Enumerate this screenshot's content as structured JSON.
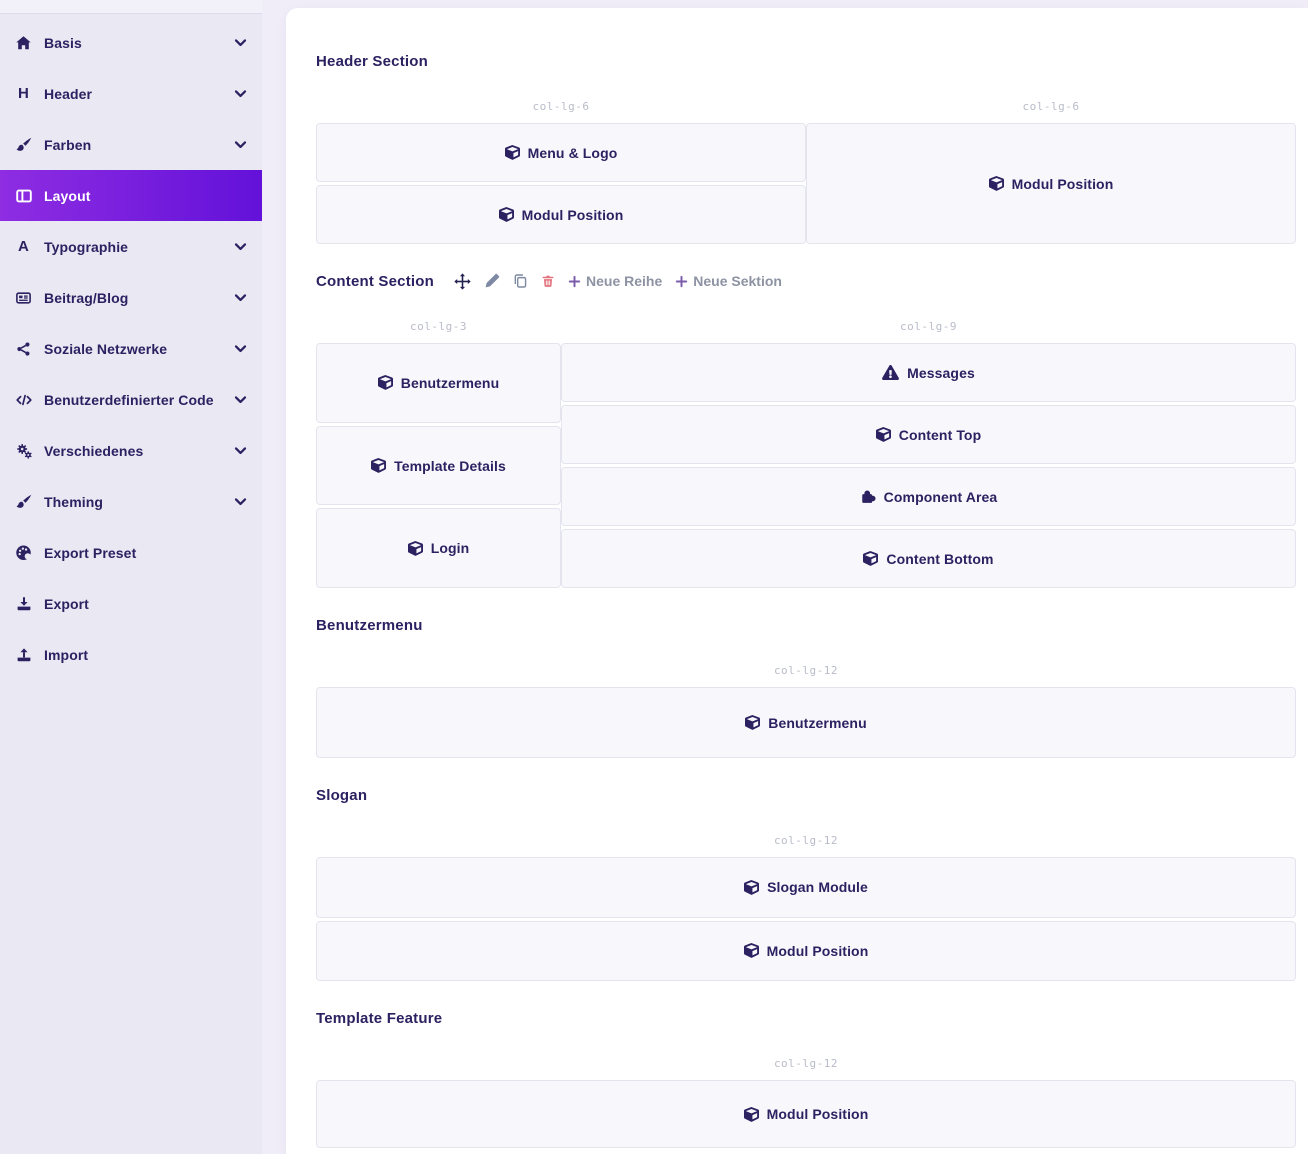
{
  "sidebar": {
    "items": [
      {
        "label": "Basis",
        "icon": "home",
        "expandable": true,
        "active": false
      },
      {
        "label": "Header",
        "icon": "heading",
        "expandable": true,
        "active": false
      },
      {
        "label": "Farben",
        "icon": "brush",
        "expandable": true,
        "active": false
      },
      {
        "label": "Layout",
        "icon": "columns",
        "expandable": false,
        "active": true
      },
      {
        "label": "Typographie",
        "icon": "font",
        "expandable": true,
        "active": false
      },
      {
        "label": "Beitrag/Blog",
        "icon": "newspaper",
        "expandable": true,
        "active": false
      },
      {
        "label": "Soziale Netzwerke",
        "icon": "share",
        "expandable": true,
        "active": false
      },
      {
        "label": "Benutzerdefinierter Code",
        "icon": "code",
        "expandable": true,
        "active": false
      },
      {
        "label": "Verschiedenes",
        "icon": "cogs",
        "expandable": true,
        "active": false
      },
      {
        "label": "Theming",
        "icon": "brush",
        "expandable": true,
        "active": false
      },
      {
        "label": "Export Preset",
        "icon": "palette",
        "expandable": false,
        "active": false
      },
      {
        "label": "Export",
        "icon": "download",
        "expandable": false,
        "active": false
      },
      {
        "label": "Import",
        "icon": "upload",
        "expandable": false,
        "active": false
      }
    ]
  },
  "toolbar": {
    "actions": [
      {
        "name": "move",
        "icon": "move-icon"
      },
      {
        "name": "edit",
        "icon": "pencil-icon"
      },
      {
        "name": "duplicate",
        "icon": "copy-icon"
      },
      {
        "name": "delete",
        "icon": "trash-icon"
      }
    ],
    "new_row_label": "Neue Reihe",
    "new_section_label": "Neue Sektion"
  },
  "sections": [
    {
      "title": "Header Section",
      "has_toolbar": false,
      "columns": [
        {
          "size_label": "col-lg-6",
          "modules": [
            {
              "label": "Menu & Logo",
              "icon": "cube"
            },
            {
              "label": "Modul Position",
              "icon": "cube"
            }
          ]
        },
        {
          "size_label": "col-lg-6",
          "modules": [
            {
              "label": "Modul Position",
              "icon": "cube"
            }
          ]
        }
      ]
    },
    {
      "title": "Content Section",
      "has_toolbar": true,
      "columns": [
        {
          "size_label": "col-lg-3",
          "modules": [
            {
              "label": "Benutzermenu",
              "icon": "cube"
            },
            {
              "label": "Template Details",
              "icon": "cube"
            },
            {
              "label": "Login",
              "icon": "cube"
            }
          ]
        },
        {
          "size_label": "col-lg-9",
          "modules": [
            {
              "label": "Messages",
              "icon": "warning"
            },
            {
              "label": "Content Top",
              "icon": "cube"
            },
            {
              "label": "Component Area",
              "icon": "puzzle"
            },
            {
              "label": "Content Bottom",
              "icon": "cube"
            }
          ]
        }
      ]
    },
    {
      "title": "Benutzermenu",
      "has_toolbar": false,
      "columns": [
        {
          "size_label": "col-lg-12",
          "modules": [
            {
              "label": "Benutzermenu",
              "icon": "cube"
            }
          ]
        }
      ]
    },
    {
      "title": "Slogan",
      "has_toolbar": false,
      "columns": [
        {
          "size_label": "col-lg-12",
          "modules": [
            {
              "label": "Slogan Module",
              "icon": "cube"
            },
            {
              "label": "Modul Position",
              "icon": "cube"
            }
          ]
        }
      ]
    },
    {
      "title": "Template Feature",
      "has_toolbar": false,
      "columns": [
        {
          "size_label": "col-lg-12",
          "modules": [
            {
              "label": "Modul Position",
              "icon": "cube"
            }
          ]
        }
      ]
    }
  ],
  "colors": {
    "accent_gradient_from": "#8e2de2",
    "accent_gradient_to": "#6311d9",
    "sidebar_bg": "#e9e8f3",
    "page_bg": "#f1edf8",
    "card_bg": "#ffffff",
    "module_bg": "#f8f8fc",
    "heading_text": "#2c2161",
    "danger": "#e2747f"
  }
}
